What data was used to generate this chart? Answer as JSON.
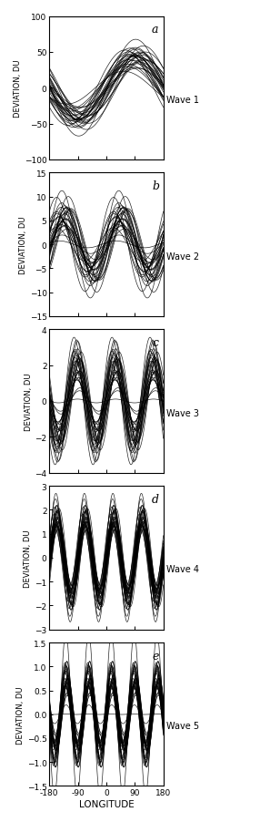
{
  "wave_panels": [
    {
      "label": "a",
      "wave_num": 1,
      "amplitude": 45,
      "amp_std": 10,
      "phase_range": 35,
      "ylim": [
        -100,
        100
      ],
      "yticks": [
        -100,
        -50,
        0,
        50,
        100
      ],
      "n_curves": 30
    },
    {
      "label": "b",
      "wave_num": 2,
      "amplitude": 7,
      "amp_std": 3,
      "phase_range": 50,
      "ylim": [
        -15,
        15
      ],
      "yticks": [
        -15,
        -10,
        -5,
        0,
        5,
        10,
        15
      ],
      "n_curves": 30
    },
    {
      "label": "c",
      "wave_num": 3,
      "amplitude": 2.2,
      "amp_std": 0.8,
      "phase_range": 40,
      "ylim": [
        -4,
        4
      ],
      "yticks": [
        -4,
        -2,
        0,
        2,
        4
      ],
      "n_curves": 30
    },
    {
      "label": "d",
      "wave_num": 4,
      "amplitude": 1.8,
      "amp_std": 0.5,
      "phase_range": 35,
      "ylim": [
        -3,
        3
      ],
      "yticks": [
        -3,
        -2,
        -1,
        0,
        1,
        2,
        3
      ],
      "n_curves": 30
    },
    {
      "label": "e",
      "wave_num": 5,
      "amplitude": 0.9,
      "amp_std": 0.3,
      "phase_range": 30,
      "ylim": [
        -1.5,
        1.5
      ],
      "yticks": [
        -1.5,
        -1.0,
        -0.5,
        0,
        0.5,
        1.0,
        1.5
      ],
      "n_curves": 30
    }
  ],
  "xlim": [
    -180,
    180
  ],
  "xticks": [
    -180,
    -90,
    0,
    90,
    180
  ],
  "xlabel": "LONGITUDE",
  "ylabel": "DEVIATION, DU",
  "line_color": "black",
  "line_width": 0.5,
  "line_alpha": 0.85,
  "background": "white"
}
